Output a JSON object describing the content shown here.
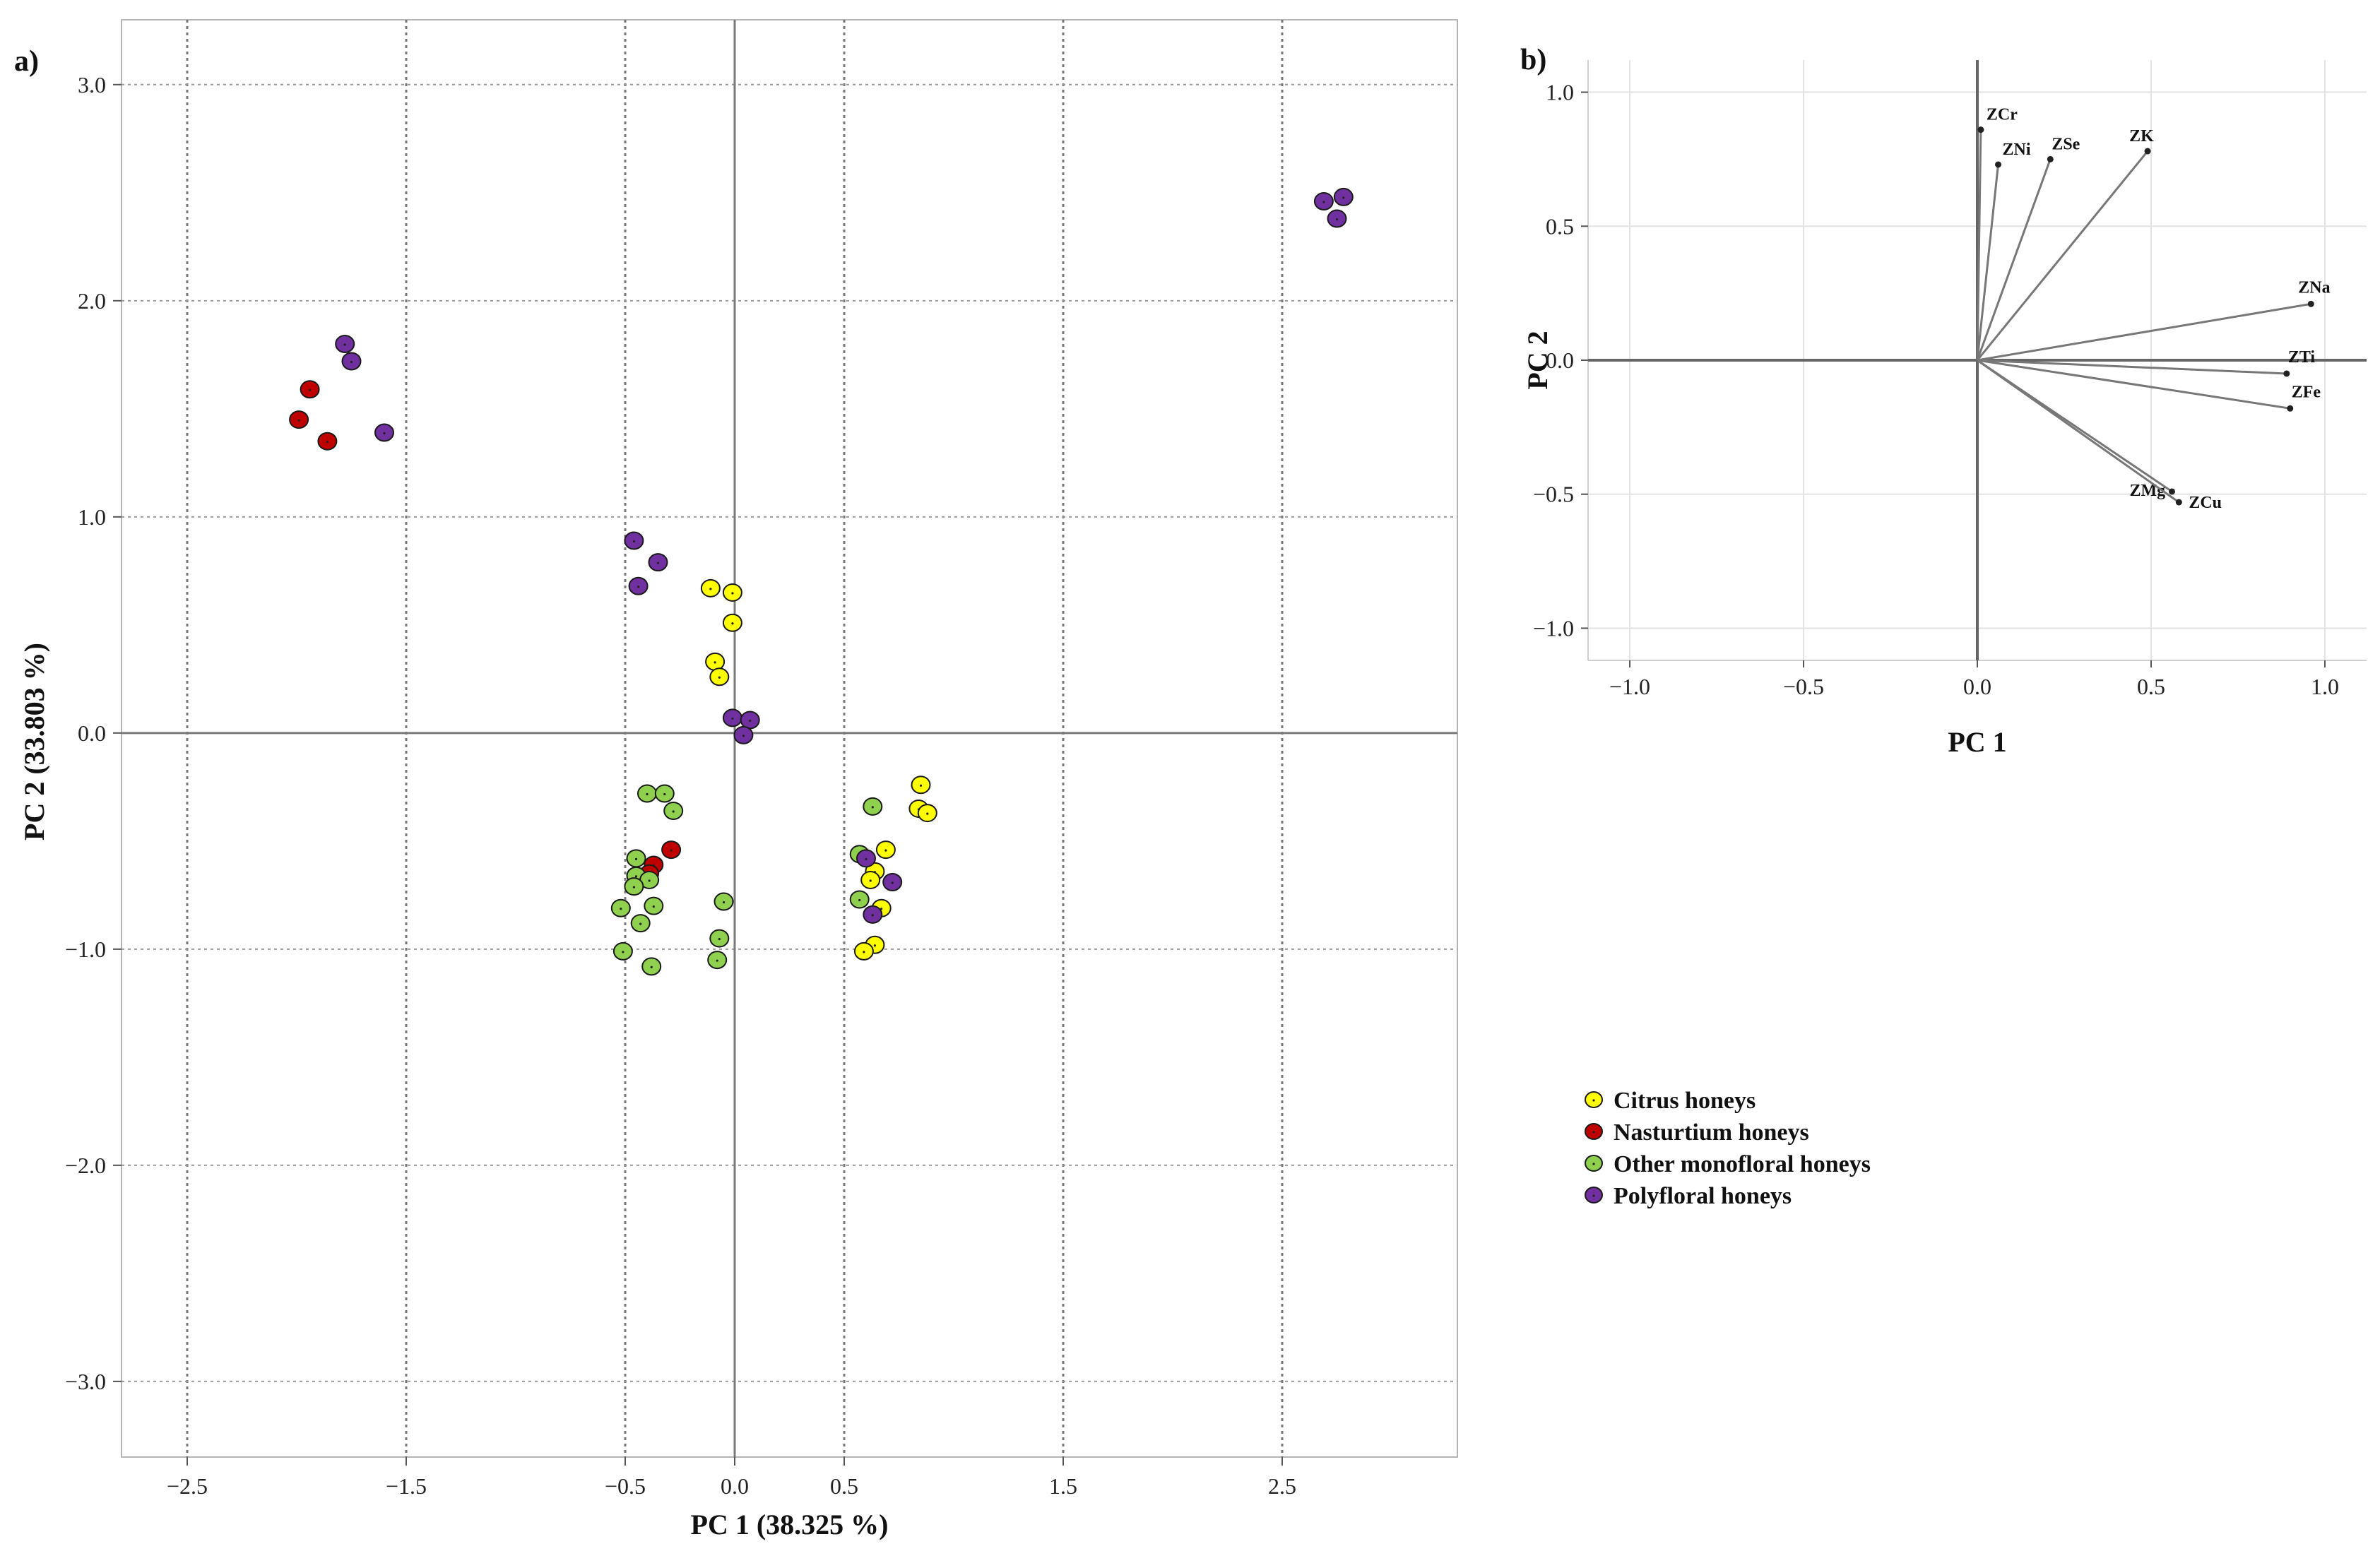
{
  "chart_data": [
    {
      "id": "a",
      "type": "scatter",
      "panel_label": "a)",
      "xlabel": "PC 1 (38.325 %)",
      "ylabel": "PC 2 (33.803 %)",
      "xlim": [
        -2.8,
        3.3
      ],
      "ylim": [
        -3.35,
        3.3
      ],
      "xticks": [
        -2.5,
        -1.5,
        -0.5,
        0.0,
        0.5,
        1.5,
        2.5
      ],
      "xtick_labels": [
        "−2.5",
        "−1.5",
        "−0.5",
        "0.0",
        "0.5",
        "1.5",
        "2.5"
      ],
      "yticks": [
        3.0,
        2.0,
        1.0,
        0.0,
        -1.0,
        -2.0,
        -3.0
      ],
      "ytick_labels": [
        "3.0",
        "2.0",
        "1.0",
        "0.0",
        "−1.0",
        "−2.0",
        "−3.0"
      ],
      "grid": true,
      "legend_position": "bottom-right",
      "series": [
        {
          "name": "Citrus honeys",
          "color": "#ffff00",
          "points": [
            [
              -0.11,
              0.67
            ],
            [
              -0.01,
              0.65
            ],
            [
              -0.01,
              0.51
            ],
            [
              -0.09,
              0.33
            ],
            [
              -0.07,
              0.26
            ],
            [
              0.85,
              -0.24
            ],
            [
              0.84,
              -0.35
            ],
            [
              0.88,
              -0.37
            ],
            [
              0.69,
              -0.54
            ],
            [
              0.64,
              -0.64
            ],
            [
              0.62,
              -0.68
            ],
            [
              0.67,
              -0.81
            ],
            [
              0.64,
              -0.98
            ],
            [
              0.59,
              -1.01
            ]
          ]
        },
        {
          "name": "Nasturtium honeys",
          "color": "#c00000",
          "points": [
            [
              -1.94,
              1.59
            ],
            [
              -1.99,
              1.45
            ],
            [
              -1.86,
              1.35
            ],
            [
              -0.29,
              -0.54
            ],
            [
              -0.37,
              -0.61
            ],
            [
              -0.39,
              -0.65
            ]
          ]
        },
        {
          "name": "Other monofloral honeys",
          "color": "#8fd14f",
          "points": [
            [
              -0.4,
              -0.28
            ],
            [
              -0.32,
              -0.28
            ],
            [
              -0.28,
              -0.36
            ],
            [
              -0.45,
              -0.58
            ],
            [
              -0.45,
              -0.66
            ],
            [
              -0.39,
              -0.68
            ],
            [
              -0.46,
              -0.71
            ],
            [
              -0.37,
              -0.8
            ],
            [
              -0.52,
              -0.81
            ],
            [
              -0.43,
              -0.88
            ],
            [
              -0.51,
              -1.01
            ],
            [
              -0.38,
              -1.08
            ],
            [
              -0.05,
              -0.78
            ],
            [
              -0.07,
              -0.95
            ],
            [
              -0.08,
              -1.05
            ],
            [
              0.63,
              -0.34
            ],
            [
              0.57,
              -0.56
            ],
            [
              0.57,
              -0.77
            ]
          ]
        },
        {
          "name": "Polyfloral honeys",
          "color": "#7030a0",
          "points": [
            [
              -1.78,
              1.8
            ],
            [
              -1.75,
              1.72
            ],
            [
              -1.6,
              1.39
            ],
            [
              -0.46,
              0.89
            ],
            [
              -0.35,
              0.79
            ],
            [
              -0.44,
              0.68
            ],
            [
              -0.01,
              0.07
            ],
            [
              0.07,
              0.06
            ],
            [
              0.04,
              -0.01
            ],
            [
              2.69,
              2.46
            ],
            [
              2.78,
              2.48
            ],
            [
              2.75,
              2.38
            ],
            [
              0.6,
              -0.58
            ],
            [
              0.72,
              -0.69
            ],
            [
              0.63,
              -0.84
            ]
          ]
        }
      ]
    },
    {
      "id": "b",
      "type": "loading-vectors",
      "panel_label": "b)",
      "xlabel": "PC 1",
      "ylabel": "PC 2",
      "xlim": [
        -1.12,
        1.12
      ],
      "ylim": [
        -1.12,
        1.12
      ],
      "xticks": [
        -1.0,
        -0.5,
        0.0,
        0.5,
        1.0
      ],
      "xtick_labels": [
        "−1.0",
        "−0.5",
        "0.0",
        "0.5",
        "1.0"
      ],
      "yticks": [
        1.0,
        0.5,
        0.0,
        -0.5,
        -1.0
      ],
      "ytick_labels": [
        "1.0",
        "0.5",
        "0.0",
        "−0.5",
        "−1.0"
      ],
      "grid": true,
      "vectors": [
        {
          "name": "ZCr",
          "x": 0.01,
          "y": 0.86
        },
        {
          "name": "ZNi",
          "x": 0.06,
          "y": 0.73
        },
        {
          "name": "ZSe",
          "x": 0.21,
          "y": 0.75
        },
        {
          "name": "ZK",
          "x": 0.49,
          "y": 0.78
        },
        {
          "name": "ZNa",
          "x": 0.96,
          "y": 0.21
        },
        {
          "name": "ZTi",
          "x": 0.89,
          "y": -0.05
        },
        {
          "name": "ZFe",
          "x": 0.9,
          "y": -0.18
        },
        {
          "name": "ZMg",
          "x": 0.56,
          "y": -0.49
        },
        {
          "name": "ZCu",
          "x": 0.58,
          "y": -0.53
        }
      ]
    }
  ]
}
